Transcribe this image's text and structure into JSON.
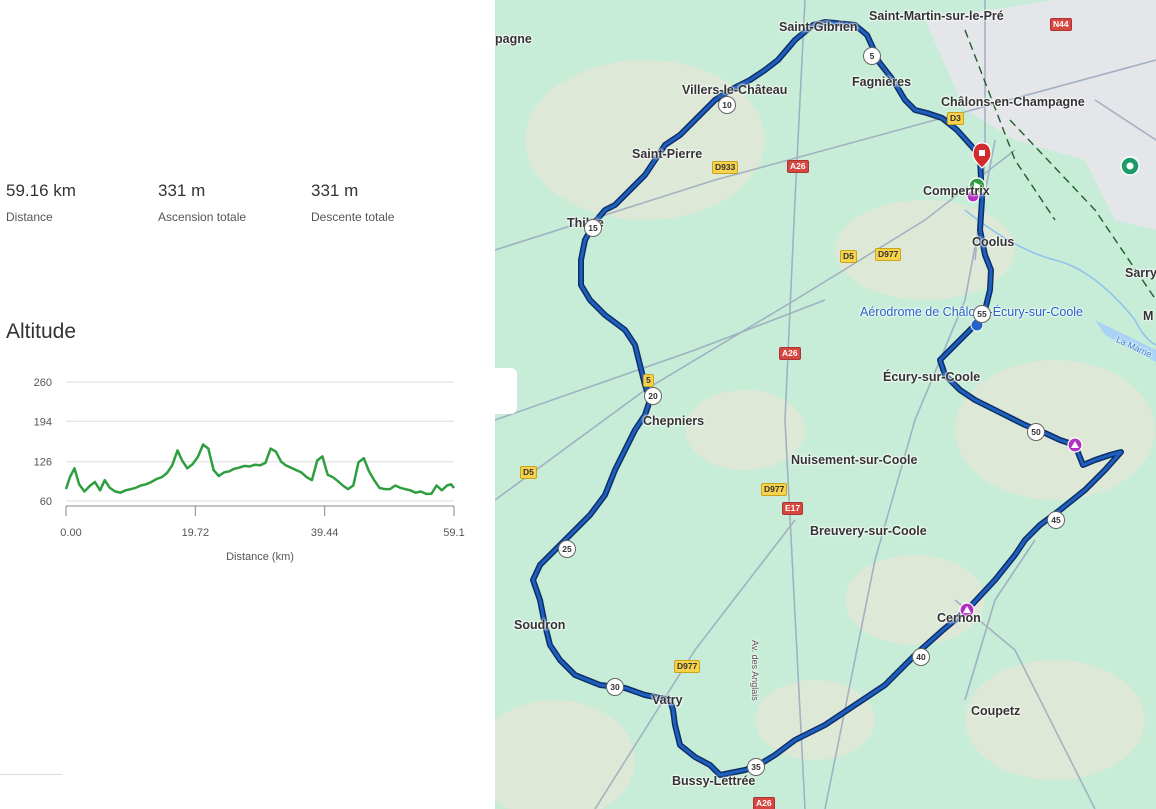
{
  "stats": [
    {
      "value": "59.16 km",
      "label": "Distance"
    },
    {
      "value": "331 m",
      "label": "Ascension totale"
    },
    {
      "value": "331 m",
      "label": "Descente totale"
    }
  ],
  "altitude": {
    "title": "Altitude",
    "yticks": [
      "260",
      "194",
      "126",
      "60"
    ],
    "xticks": [
      "0.00",
      "19.72",
      "39.44",
      "59.1"
    ],
    "xlabel": "Distance (km)",
    "line_color": "#2e9e3f"
  },
  "chart_data": {
    "type": "line",
    "title": "Altitude",
    "xlabel": "Distance (km)",
    "ylabel": "",
    "xlim": [
      0,
      59.16
    ],
    "ylim": [
      60,
      260
    ],
    "series": [
      {
        "x": [
          0,
          0.6,
          1.3,
          2.0,
          2.8,
          3.6,
          4.4,
          5.2,
          5.9,
          6.7,
          7.5,
          8.3,
          9.1,
          9.9,
          10.6,
          11.4,
          12.2,
          13.0,
          13.8,
          14.6,
          15.4,
          16.2,
          17.0,
          17.7,
          18.5,
          19.3,
          20.1,
          20.9,
          21.7,
          22.5,
          23.3,
          24.1,
          24.9,
          25.6,
          26.4,
          27.2,
          28.0,
          28.8,
          29.6,
          30.4,
          31.2,
          32.0,
          32.8,
          33.5,
          34.3,
          35.1,
          35.9,
          36.7,
          37.5,
          38.3,
          39.1,
          39.9,
          40.7,
          41.4,
          42.2,
          43.0,
          43.8,
          44.6,
          45.4,
          46.2,
          47.0,
          47.8,
          48.6,
          49.4,
          50.2,
          51.0,
          51.7,
          52.5,
          53.3,
          54.1,
          54.9,
          55.7,
          56.5,
          57.3,
          58.1,
          58.7,
          59.16
        ],
        "y": [
          80,
          100,
          115,
          88,
          76,
          85,
          92,
          78,
          95,
          82,
          76,
          74,
          78,
          80,
          82,
          86,
          88,
          92,
          97,
          100,
          107,
          120,
          145,
          128,
          115,
          122,
          134,
          155,
          148,
          112,
          102,
          108,
          110,
          114,
          116,
          119,
          118,
          121,
          120,
          124,
          148,
          143,
          126,
          120,
          116,
          112,
          108,
          100,
          95,
          128,
          135,
          104,
          100,
          94,
          86,
          80,
          86,
          125,
          132,
          110,
          95,
          82,
          80,
          80,
          86,
          82,
          80,
          78,
          74,
          76,
          72,
          72,
          86,
          78,
          86,
          88,
          82
        ]
      }
    ]
  },
  "map": {
    "route_color": "#1e5fbf",
    "places": [
      {
        "name": "Saint-Martin-sur-le-Pré"
      },
      {
        "name": "Saint-Gibrien"
      },
      {
        "name": "Fagnières"
      },
      {
        "name": "Villers-le-Château"
      },
      {
        "name": "Châlons-en-Champagne"
      },
      {
        "name": "Saint-Pierre"
      },
      {
        "name": "Compertrix"
      },
      {
        "name": "Coolus"
      },
      {
        "name": "Thibie"
      },
      {
        "name": "Sarry"
      },
      {
        "name": "Aérodrome de Châlons-Écury-sur-Coole"
      },
      {
        "name": "Écury-sur-Coole"
      },
      {
        "name": "Chepniers"
      },
      {
        "name": "Nuisement-sur-Coole"
      },
      {
        "name": "Breuvery-sur-Coole"
      },
      {
        "name": "Soudron"
      },
      {
        "name": "Cernon"
      },
      {
        "name": "Vatry"
      },
      {
        "name": "Coupetz"
      },
      {
        "name": "Bussy-Lettrée"
      },
      {
        "name": "pagne"
      },
      {
        "name": "M"
      },
      {
        "name": "La Marne"
      },
      {
        "name": "Av. des Anglais"
      }
    ],
    "roads": [
      "N44",
      "D3",
      "D933",
      "A26",
      "D5",
      "D977",
      "E17",
      "D977",
      "D5",
      "A26",
      "A26",
      "D977",
      "5"
    ],
    "km_markers": [
      "5",
      "10",
      "15",
      "20",
      "25",
      "30",
      "35",
      "40",
      "45",
      "50",
      "55"
    ]
  }
}
